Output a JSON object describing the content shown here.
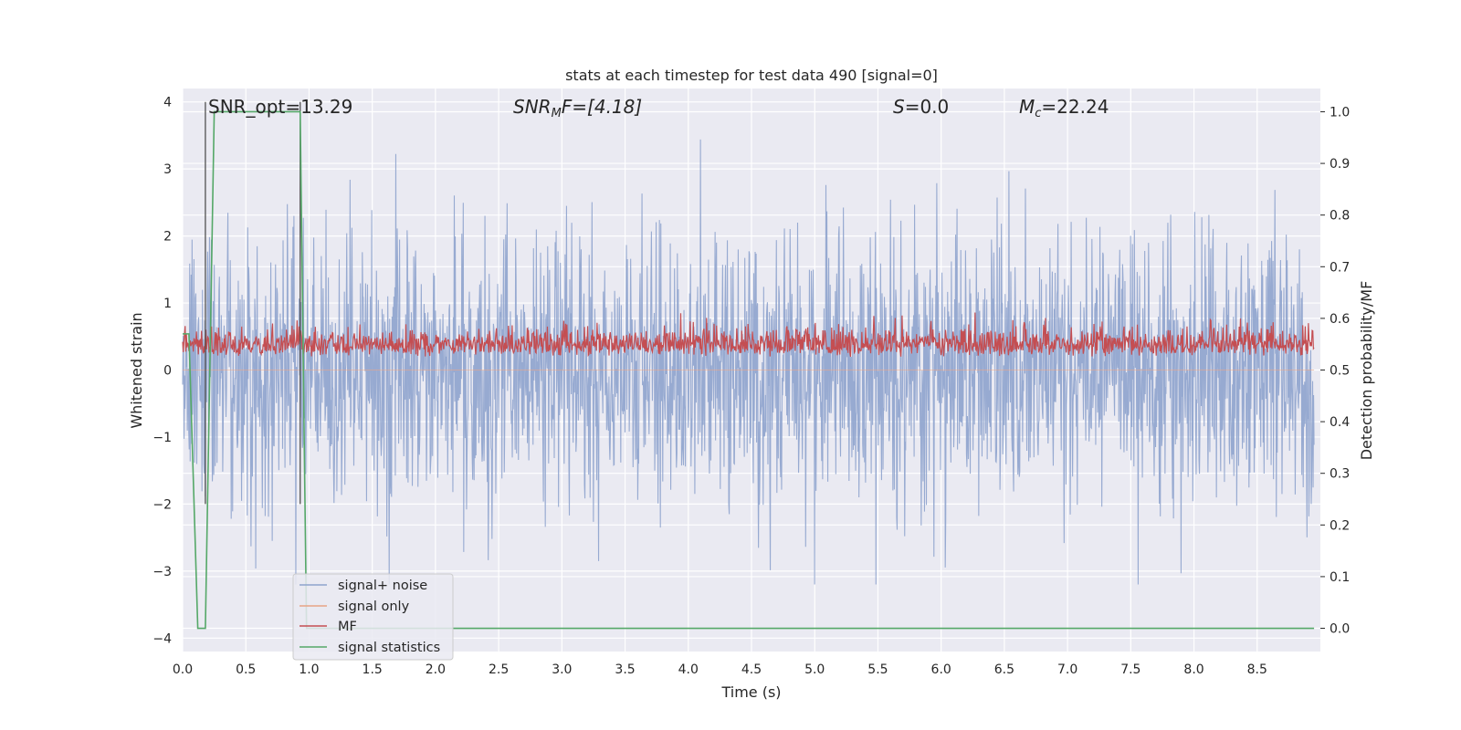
{
  "chart_data": {
    "type": "line",
    "title": "stats at each timestep for test data 490 [signal=0]",
    "xlabel": "Time (s)",
    "ylabel": "Whitened strain",
    "y2label": "Detection probability/MF",
    "xlim": [
      0.0,
      9.0
    ],
    "ylim": [
      -4.2,
      4.2
    ],
    "y2lim": [
      -0.045,
      1.045
    ],
    "x_ticks": [
      "0.0",
      "0.5",
      "1.0",
      "1.5",
      "2.0",
      "2.5",
      "3.0",
      "3.5",
      "4.0",
      "4.5",
      "5.0",
      "5.5",
      "6.0",
      "6.5",
      "7.0",
      "7.5",
      "8.0",
      "8.5"
    ],
    "y_ticks": [
      "4",
      "3",
      "2",
      "1",
      "0",
      "−1",
      "−2",
      "−3",
      "−4"
    ],
    "y2_ticks": [
      "1.0",
      "0.9",
      "0.8",
      "0.7",
      "0.6",
      "0.5",
      "0.4",
      "0.3",
      "0.2",
      "0.1",
      "0.0"
    ],
    "grid": true,
    "legend_position": "lower-left",
    "annotations": {
      "snr_opt_prefix": "SNR_opt=",
      "snr_opt_value": "13.29",
      "snr_mf_sym": "SNR",
      "snr_mf_sub": "M",
      "snr_mf_suffix": "F=[4.18]",
      "s_sym": "S",
      "s_value": "=0.0",
      "mc_sym": "M",
      "mc_sub": "c",
      "mc_value": "=22.24"
    },
    "series": [
      {
        "name": "signal+ noise",
        "color": "#8ea3cd",
        "axis": "left",
        "description_values": {
          "x_range": [
            0.0,
            9.0
          ],
          "approx_range": [
            -3.2,
            4.0
          ]
        }
      },
      {
        "name": "signal only",
        "color": "#e8a386",
        "axis": "left"
      },
      {
        "name": "MF",
        "color": "#c44e52",
        "axis": "right",
        "description_values": {
          "approx_range": [
            0.5,
            0.62
          ]
        }
      },
      {
        "name": "signal statistics",
        "color": "#55a868",
        "axis": "right",
        "x": [
          0.0,
          0.05,
          0.12,
          0.18,
          0.25,
          0.93,
          0.98,
          1.0,
          8.95
        ],
        "values": [
          0.57,
          0.57,
          0.0,
          0.0,
          1.0,
          1.0,
          0.0,
          0.0,
          0.0
        ]
      }
    ],
    "vertical_markers": {
      "color": "#505050",
      "x": [
        0.18,
        0.93
      ],
      "label": ""
    }
  },
  "colors": {
    "background": "#eaeaf2",
    "grid": "#ffffff",
    "noise": "#8ea3cd",
    "signal_only": "#e8a386",
    "mf": "#c44e52",
    "stats": "#55a868",
    "marker": "#505050"
  }
}
